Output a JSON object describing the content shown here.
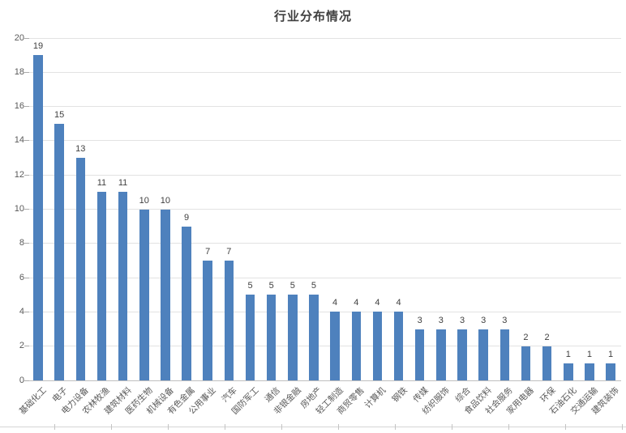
{
  "chart_data": {
    "type": "bar",
    "title": "行业分布情况",
    "categories": [
      "基础化工",
      "电子",
      "电力设备",
      "农林牧渔",
      "建筑材料",
      "医药生物",
      "机械设备",
      "有色金属",
      "公用事业",
      "汽车",
      "国防军工",
      "通信",
      "非银金融",
      "房地产",
      "轻工制造",
      "商贸零售",
      "计算机",
      "钢铁",
      "传媒",
      "纺织服饰",
      "综合",
      "食品饮料",
      "社会服务",
      "家用电器",
      "环保",
      "石油石化",
      "交通运输",
      "建筑装饰"
    ],
    "values": [
      19,
      15,
      13,
      11,
      11,
      10,
      10,
      9,
      7,
      7,
      5,
      5,
      5,
      5,
      4,
      4,
      4,
      4,
      3,
      3,
      3,
      3,
      3,
      2,
      2,
      1,
      1,
      1
    ],
    "xlabel": "",
    "ylabel": "",
    "ylim": [
      0,
      20
    ],
    "ytick_step": 2,
    "grid": "horizontal",
    "legend": "none",
    "data_labels": true
  },
  "colors": {
    "bar": "#4E81BD",
    "title": "#404040",
    "axis_text": "#595959",
    "data_label_text": "#404040",
    "gridline": "#E2E2E2",
    "axis_line": "#BFBFBF",
    "tick": "#ABABAB",
    "sheet_line": "#D5D5D5",
    "sheet_tick": "#C4C4C4",
    "background": "#FFFFFF"
  }
}
